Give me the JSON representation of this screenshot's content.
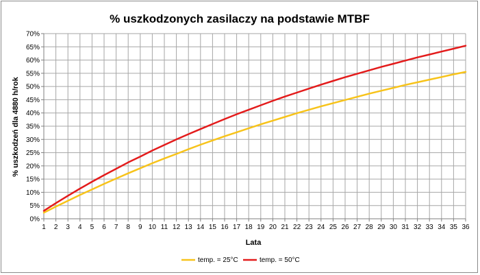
{
  "chart_data": {
    "type": "line",
    "title": "% uszkodzonych zasilaczy na podstawie MTBF",
    "xlabel": "Lata",
    "ylabel": "% uszkodzeń dla 4880 h/rok",
    "x": [
      1,
      2,
      3,
      4,
      5,
      6,
      7,
      8,
      9,
      10,
      11,
      12,
      13,
      14,
      15,
      16,
      17,
      18,
      19,
      20,
      21,
      22,
      23,
      24,
      25,
      26,
      27,
      28,
      29,
      30,
      31,
      32,
      33,
      34,
      35,
      36
    ],
    "xlim": [
      1,
      36
    ],
    "ylim": [
      0,
      0.7
    ],
    "y_ticks": [
      "0%",
      "5%",
      "10%",
      "15%",
      "20%",
      "25%",
      "30%",
      "35%",
      "40%",
      "45%",
      "50%",
      "55%",
      "60%",
      "65%",
      "70%"
    ],
    "grid": true,
    "legend_position": "bottom",
    "series": [
      {
        "name": "temp. = 25°C",
        "color": "#f7c31a",
        "values": [
          0.023,
          0.046,
          0.068,
          0.09,
          0.111,
          0.132,
          0.152,
          0.172,
          0.191,
          0.21,
          0.228,
          0.245,
          0.263,
          0.28,
          0.296,
          0.312,
          0.327,
          0.342,
          0.357,
          0.371,
          0.385,
          0.399,
          0.412,
          0.425,
          0.437,
          0.449,
          0.461,
          0.473,
          0.484,
          0.495,
          0.506,
          0.516,
          0.526,
          0.536,
          0.546,
          0.555
        ]
      },
      {
        "name": "temp. = 50°C",
        "color": "#e31b1b",
        "values": [
          0.03,
          0.059,
          0.087,
          0.114,
          0.14,
          0.165,
          0.189,
          0.213,
          0.235,
          0.258,
          0.279,
          0.3,
          0.32,
          0.339,
          0.358,
          0.377,
          0.395,
          0.412,
          0.429,
          0.446,
          0.462,
          0.477,
          0.492,
          0.507,
          0.521,
          0.535,
          0.548,
          0.561,
          0.574,
          0.586,
          0.598,
          0.61,
          0.621,
          0.632,
          0.643,
          0.654
        ]
      }
    ]
  }
}
